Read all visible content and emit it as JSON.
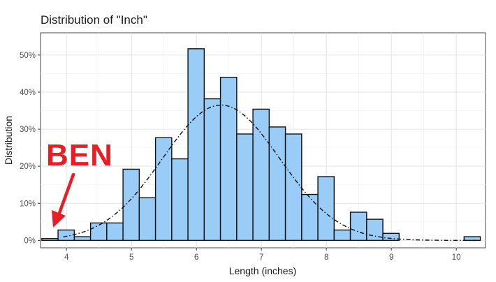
{
  "chart_data": {
    "type": "bar",
    "title": "Distribution of \"Inch\"",
    "xlabel": "Length (inches)",
    "ylabel": "Distribution",
    "xlim": [
      3.6,
      10.45
    ],
    "ylim": [
      -2,
      56
    ],
    "x_ticks": [
      4,
      5,
      6,
      7,
      8,
      9,
      10
    ],
    "y_ticks": [
      0,
      10,
      20,
      30,
      40,
      50
    ],
    "y_tick_labels": [
      "0%",
      "10%",
      "20%",
      "30%",
      "40%",
      "50%"
    ],
    "bin_width": 0.25,
    "bins": [
      {
        "start": 3.62,
        "value": 0.5
      },
      {
        "start": 3.87,
        "value": 2.8
      },
      {
        "start": 4.12,
        "value": 1.0
      },
      {
        "start": 4.37,
        "value": 4.7
      },
      {
        "start": 4.62,
        "value": 4.7
      },
      {
        "start": 4.87,
        "value": 19.2
      },
      {
        "start": 5.12,
        "value": 11.5
      },
      {
        "start": 5.37,
        "value": 27.7
      },
      {
        "start": 5.62,
        "value": 22.0
      },
      {
        "start": 5.87,
        "value": 51.7
      },
      {
        "start": 6.12,
        "value": 38.2
      },
      {
        "start": 6.37,
        "value": 44.0
      },
      {
        "start": 6.62,
        "value": 28.7
      },
      {
        "start": 6.87,
        "value": 35.4
      },
      {
        "start": 7.12,
        "value": 30.6
      },
      {
        "start": 7.37,
        "value": 28.7
      },
      {
        "start": 7.62,
        "value": 12.4
      },
      {
        "start": 7.87,
        "value": 17.2
      },
      {
        "start": 8.12,
        "value": 2.8
      },
      {
        "start": 8.37,
        "value": 7.6
      },
      {
        "start": 8.62,
        "value": 5.7
      },
      {
        "start": 8.87,
        "value": 1.9
      },
      {
        "start": 10.12,
        "value": 1.0
      }
    ],
    "normal_curve": {
      "mean": 6.38,
      "sd": 0.9,
      "peak": 36.5,
      "style": "dot-dash"
    },
    "grid": true,
    "bar_color": "#99ccf7",
    "bar_stroke": "#111111",
    "annotation": {
      "text": "BEN",
      "color": "#ea1c24",
      "points_to_x": 3.75,
      "points_to_y": 3.5
    }
  }
}
